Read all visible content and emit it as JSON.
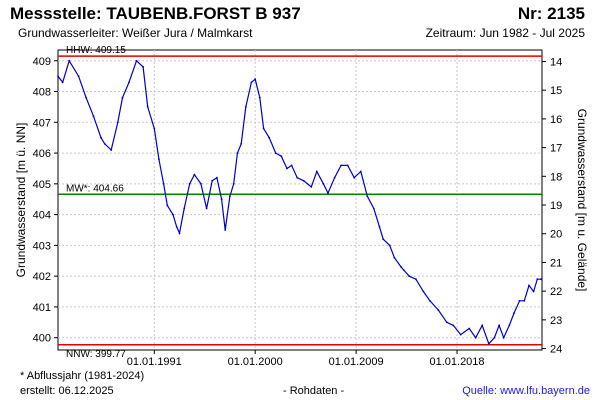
{
  "header": {
    "station_title": "Messstelle: TAUBENB.FORST B 937",
    "station_number": "Nr: 2135",
    "aquifer": "Grundwasserleiter:   Weißer Jura / Malmkarst",
    "period": "Zeitraum: Jun 1982 - Jul 2025"
  },
  "footer": {
    "note": "* Abflussjahr (1981-2024)",
    "created": "erstellt:  06.12.2025",
    "raw": "- Rohdaten -",
    "source_label": "Quelle:",
    "source_link": "www.lfu.bayern.de"
  },
  "colors": {
    "series": "#0000cc",
    "extreme_line": "#e00000",
    "mean_line": "#008000",
    "grid": "#c8c8c8"
  },
  "chart_data": {
    "type": "line",
    "ylabel": "Grundwasserstand [m ü. NN]",
    "ylabel_right": "Grundwasserstand [m u. Gelände]",
    "ylim": [
      399.6,
      409.35
    ],
    "ylim_right": [
      24.05,
      13.6
    ],
    "yticks": [
      400,
      401,
      402,
      403,
      404,
      405,
      406,
      407,
      408,
      409
    ],
    "yticks_right": [
      14,
      15,
      16,
      17,
      18,
      19,
      20,
      21,
      22,
      23,
      24
    ],
    "xlim": [
      "1982-06-01",
      "2025-07-31"
    ],
    "xticks": [
      {
        "date": "1991-01-01",
        "label": "01.01.1991"
      },
      {
        "date": "2000-01-01",
        "label": "01.01.2000"
      },
      {
        "date": "2009-01-01",
        "label": "01.01.2009"
      },
      {
        "date": "2018-01-01",
        "label": "01.01.2018"
      }
    ],
    "grid": true,
    "reference_lines": [
      {
        "label": "HHW: 409.15",
        "value": 409.15,
        "kind": "max"
      },
      {
        "label": "MW*: 404.66",
        "value": 404.66,
        "kind": "mean"
      },
      {
        "label": "NNW: 399.77",
        "value": 399.77,
        "kind": "min"
      }
    ],
    "series": [
      {
        "x": [
          "1982-06-01",
          "1982-11-01",
          "1983-06-01",
          "1984-04-01",
          "1984-12-01",
          "1985-08-01",
          "1986-04-01",
          "1986-08-01",
          "1987-03-01",
          "1987-10-01",
          "1988-03-01",
          "1988-10-01",
          "1989-06-01",
          "1990-01-01",
          "1990-06-01",
          "1991-01-01",
          "1991-06-01",
          "1991-11-01",
          "1992-03-01",
          "1992-09-01",
          "1993-01-01",
          "1993-04-01",
          "1993-09-01",
          "1994-03-01",
          "1994-08-01",
          "1995-03-01",
          "1995-09-01",
          "1996-03-01",
          "1996-08-01",
          "1997-01-01",
          "1997-05-01",
          "1997-10-01",
          "1998-02-01",
          "1998-06-01",
          "1998-10-01",
          "1999-03-01",
          "1999-09-01",
          "2000-01-01",
          "2000-06-01",
          "2000-10-01",
          "2001-04-01",
          "2001-11-01",
          "2002-05-01",
          "2002-11-01",
          "2003-04-01",
          "2003-10-01",
          "2004-05-01",
          "2005-01-01",
          "2005-07-01",
          "2006-02-01",
          "2006-07-01",
          "2007-02-01",
          "2007-09-01",
          "2008-04-01",
          "2008-11-01",
          "2009-06-01",
          "2010-01-01",
          "2010-08-01",
          "2011-02-01",
          "2011-06-01",
          "2012-01-01",
          "2012-06-01",
          "2013-01-01",
          "2013-04-01",
          "2013-10-01",
          "2014-05-01",
          "2015-01-01",
          "2015-08-01",
          "2016-05-01",
          "2017-02-01",
          "2017-09-01",
          "2018-05-01",
          "2019-02-01",
          "2019-09-01",
          "2020-04-01",
          "2020-11-01",
          "2021-05-01",
          "2021-10-01",
          "2022-03-01",
          "2022-09-01",
          "2023-02-01",
          "2023-08-01",
          "2024-01-01",
          "2024-06-01",
          "2024-11-01",
          "2025-03-01",
          "2025-07-01"
        ],
        "y": [
          408.5,
          408.3,
          409.0,
          408.5,
          407.8,
          407.2,
          406.5,
          406.3,
          406.1,
          407.0,
          407.8,
          408.3,
          409.0,
          408.8,
          407.5,
          406.8,
          405.8,
          405.0,
          404.3,
          404.0,
          403.6,
          403.4,
          404.2,
          405.0,
          405.3,
          405.0,
          404.2,
          405.1,
          405.2,
          404.5,
          403.5,
          404.6,
          405.0,
          406.0,
          406.3,
          407.5,
          408.3,
          408.4,
          407.8,
          406.8,
          406.5,
          406.0,
          405.9,
          405.5,
          405.6,
          405.2,
          405.1,
          404.9,
          405.4,
          405.0,
          404.7,
          405.2,
          405.6,
          405.6,
          405.2,
          405.4,
          404.6,
          404.2,
          403.6,
          403.2,
          403.0,
          402.6,
          402.3,
          402.2,
          402.0,
          401.9,
          401.5,
          401.2,
          400.9,
          400.5,
          400.4,
          400.1,
          400.3,
          400.0,
          400.4,
          399.8,
          400.0,
          400.4,
          400.0,
          400.4,
          400.8,
          401.2,
          401.2,
          401.7,
          401.5,
          401.9,
          401.9
        ]
      }
    ]
  }
}
